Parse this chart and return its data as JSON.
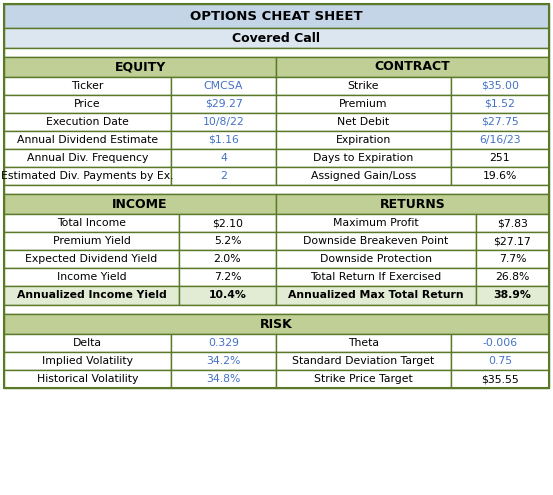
{
  "title1": "OPTIONS CHEAT SHEET",
  "title2": "Covered Call",
  "header_bg": "#c5d5e8",
  "subheader_bg": "#dce6f1",
  "section_header_bg": "#bfcf96",
  "border_color": "#5a7a2a",
  "blue_text": "#4472c4",
  "red_text": "#c00000",
  "black_text": "#000000",
  "bold_row_bg": "#e2ecd4",
  "white_bg": "#ffffff",
  "equity_rows": [
    [
      "Ticker",
      "CMCSA",
      "Strike",
      "$35.00"
    ],
    [
      "Price",
      "$29.27",
      "Premium",
      "$1.52"
    ],
    [
      "Execution Date",
      "10/8/22",
      "Net Debit",
      "$27.75"
    ],
    [
      "Annual Dividend Estimate",
      "$1.16",
      "Expiration",
      "6/16/23"
    ],
    [
      "Annual Div. Frequency",
      "4",
      "Days to Expiration",
      "251"
    ],
    [
      "Estimated Div. Payments by Ex.",
      "2",
      "Assigned Gain/Loss",
      "19.6%"
    ]
  ],
  "equity_value_colors": [
    [
      "#000000",
      "#4472c4",
      "#000000",
      "#4472c4"
    ],
    [
      "#000000",
      "#4472c4",
      "#000000",
      "#4472c4"
    ],
    [
      "#000000",
      "#4472c4",
      "#000000",
      "#4472c4"
    ],
    [
      "#000000",
      "#4472c4",
      "#000000",
      "#4472c4"
    ],
    [
      "#000000",
      "#4472c4",
      "#000000",
      "#000000"
    ],
    [
      "#000000",
      "#4472c4",
      "#000000",
      "#000000"
    ]
  ],
  "income_rows": [
    [
      "Total Income",
      "$2.10",
      "Maximum Profit",
      "$7.83"
    ],
    [
      "Premium Yield",
      "5.2%",
      "Downside Breakeven Point",
      "$27.17"
    ],
    [
      "Expected Dividend Yield",
      "2.0%",
      "Downside Protection",
      "7.7%"
    ],
    [
      "Income Yield",
      "7.2%",
      "Total Return If Exercised",
      "26.8%"
    ],
    [
      "Annualized Income Yield",
      "10.4%",
      "Annualized Max Total Return",
      "38.9%"
    ]
  ],
  "income_bold": [
    false,
    false,
    false,
    false,
    true
  ],
  "risk_rows": [
    [
      "Delta",
      "0.329",
      "Theta",
      "-0.006"
    ],
    [
      "Implied Volatility",
      "34.2%",
      "Standard Deviation Target",
      "0.75"
    ],
    [
      "Historical Volatility",
      "34.8%",
      "Strike Price Target",
      "$35.55"
    ]
  ],
  "risk_value_colors": [
    [
      "#000000",
      "#4472c4",
      "#000000",
      "#4472c4"
    ],
    [
      "#000000",
      "#4472c4",
      "#000000",
      "#4472c4"
    ],
    [
      "#000000",
      "#4472c4",
      "#000000",
      "#000000"
    ]
  ],
  "fig_width": 5.53,
  "fig_height": 4.95,
  "dpi": 100
}
